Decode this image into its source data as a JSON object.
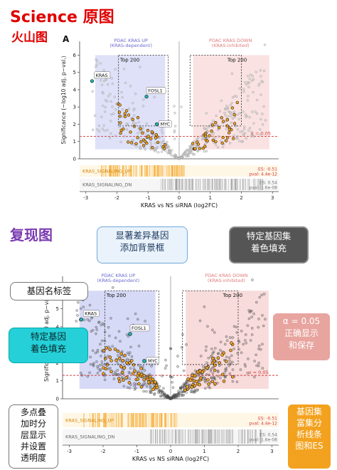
{
  "section1": {
    "title": "Science 原图",
    "subtitle": "火山图",
    "panel_letter": "A"
  },
  "section2": {
    "title": "复现图"
  },
  "colors": {
    "title_red": "#e00000",
    "title_purple": "#7b3bb0",
    "highlight_orange": "#f3a21f",
    "key_gene_cyan": "#1fb5b1",
    "up_box": "#c9cdf3",
    "down_box": "#f6cfcf"
  },
  "callouts": {
    "bg_box": "显著差异基因\n添加背景框",
    "color_fill": "特定基因集\n着色填充",
    "gene_label": "基因名标签",
    "key_gene_fill": "特定基因\n着色填充",
    "alpha": "α = 0.05\n正确显示\n和保存",
    "layering": "多点叠\n加时分\n层显示\n并设置\n透明度",
    "enrichment_bars": "基因集\n富集分\n析线条\n图和ES"
  },
  "chart_data": [
    {
      "name": "original",
      "type": "scatter",
      "title": "",
      "xlabel": "KRAS vs NS siRNA (log2FC)",
      "ylabel": "Significance (−log10 adj. p−val.)",
      "xlim": [
        -3.2,
        3.2
      ],
      "ylim": [
        0,
        6.8
      ],
      "xticks": [
        -3,
        -2,
        -1,
        0,
        1,
        2,
        3
      ],
      "yticks": [
        0,
        1,
        2,
        3,
        4,
        5,
        6
      ],
      "box_up_label": [
        "PDAC KRAS UP",
        "(KRAS-dependent)"
      ],
      "box_down_label": [
        "PDAC KRAS DOWN",
        "(KRAS-inhibited)"
      ],
      "top_label": "Top 200",
      "alpha_line": {
        "y": 1.3,
        "label": "α = 0.05"
      },
      "genes": [
        {
          "name": "KRAS",
          "x": -2.8,
          "y": 4.5
        },
        {
          "name": "FOSL1",
          "x": -1.05,
          "y": 3.6
        },
        {
          "name": "MYC",
          "x": -0.72,
          "y": 2.0
        }
      ],
      "enrichment": [
        {
          "name": "KRAS_SIGNALING_UP",
          "es": "ES: -0.51",
          "pval": "pval: 4.4e-12"
        },
        {
          "name": "KRAS_SIGNALING_DN",
          "es": "ES: 0.54",
          "pval": "pval: 1.6e-08"
        }
      ]
    },
    {
      "name": "reproduction",
      "type": "scatter",
      "title": "",
      "xlabel": "KRAS vs NS siRNA (log2FC)",
      "ylabel": "Significance (−log10 adj. p−val.)",
      "xlim": [
        -3.2,
        3.2
      ],
      "ylim": [
        0,
        6.8
      ],
      "xticks": [
        -3,
        -2,
        -1,
        0,
        1,
        2,
        3
      ],
      "yticks": [
        0,
        1,
        2,
        3,
        4,
        5,
        6
      ],
      "box_up_label": [
        "PDAC KRAS UP",
        "(KRAS-dependent)"
      ],
      "box_down_label": [
        "PDAC KRAS DOWN",
        "(KRAS-inhibited)"
      ],
      "top_label": "Top 200",
      "alpha_line": {
        "y": 1.3,
        "label": "α = 0.05"
      },
      "genes": [
        {
          "name": "KRAS",
          "x": -2.65,
          "y": 4.4
        },
        {
          "name": "FOSL1",
          "x": -1.2,
          "y": 3.6
        },
        {
          "name": "MYC",
          "x": -0.78,
          "y": 2.1
        }
      ],
      "enrichment": [
        {
          "name": "KRAS_SIGNALING_UP",
          "es": "ES: -0.51",
          "pval": "pval: 4.4e-12"
        },
        {
          "name": "KRAS_SIGNALING_DN",
          "es": "ES: 0.54",
          "pval": "pval: 1.6e-08"
        }
      ]
    }
  ]
}
